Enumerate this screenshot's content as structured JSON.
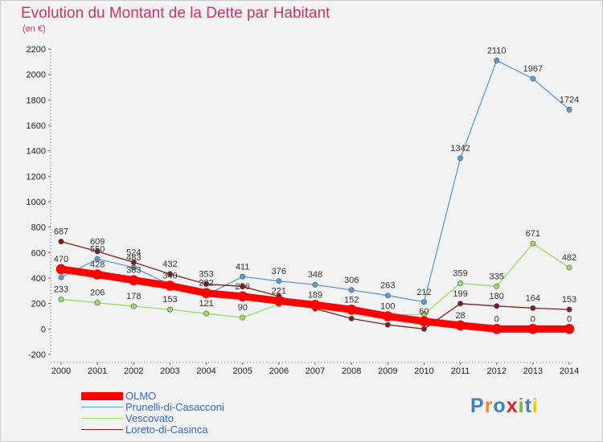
{
  "title": "Evolution du Montant de la Dette par Habitant",
  "unit": "(en €)",
  "logo": {
    "text": "Proxiti",
    "letters": [
      "P",
      "r",
      "o",
      "x",
      "i",
      "t",
      "i"
    ],
    "colors": [
      "#3b7fd1",
      "#f08a24",
      "#3b7fd1",
      "#d6262b",
      "#7fb23a",
      "#3b7fd1",
      "#f2c417"
    ]
  },
  "chart_data": {
    "type": "line",
    "x": [
      2000,
      2001,
      2002,
      2003,
      2004,
      2005,
      2006,
      2007,
      2008,
      2009,
      2010,
      2011,
      2012,
      2013,
      2014
    ],
    "ylim": [
      -200,
      2200
    ],
    "yticks": [
      -200,
      0,
      200,
      400,
      600,
      800,
      1000,
      1200,
      1400,
      1600,
      1800,
      2000,
      2200
    ],
    "grid": false,
    "legend_position": "bottom-left",
    "series": [
      {
        "name": "OLMO",
        "color": "#ff0000",
        "values": [
          470,
          428,
          383,
          340,
          282,
          256,
          221,
          189,
          152,
          100,
          60,
          28,
          0,
          0,
          0
        ],
        "labels": [
          "470",
          "428",
          "383",
          "340",
          "282",
          "256",
          "221",
          "189",
          "152",
          "100",
          "60",
          "28",
          "0",
          "0",
          "0"
        ]
      },
      {
        "name": "Prunelli-di-Casacconi",
        "color": "#5b9bd5",
        "values": [
          405,
          550,
          483,
          349,
          266,
          411,
          376,
          348,
          306,
          263,
          212,
          1342,
          2110,
          1967,
          1724
        ],
        "labels": [
          "",
          "550",
          "483",
          "",
          "",
          "411",
          "376",
          "348",
          "306",
          "263",
          "212",
          "1342",
          "2110",
          "1967",
          "1724"
        ]
      },
      {
        "name": "Vescovato",
        "color": "#99dd66",
        "values": [
          233,
          206,
          178,
          153,
          121,
          90,
          193,
          170,
          134,
          108,
          116,
          359,
          335,
          671,
          482
        ],
        "labels": [
          "233",
          "206",
          "178",
          "153",
          "121",
          "90",
          "",
          "",
          "",
          "",
          "",
          "359",
          "335",
          "671",
          "482"
        ]
      },
      {
        "name": "Loreto-di-Casinca",
        "color": "#7a2020",
        "values": [
          687,
          609,
          524,
          432,
          353,
          334,
          257,
          159,
          82,
          33,
          0,
          199,
          180,
          164,
          153
        ],
        "labels": [
          "687",
          "609",
          "524",
          "432",
          "353",
          "",
          "",
          "",
          "",
          "",
          "",
          "199",
          "180",
          "164",
          "153"
        ]
      }
    ]
  }
}
